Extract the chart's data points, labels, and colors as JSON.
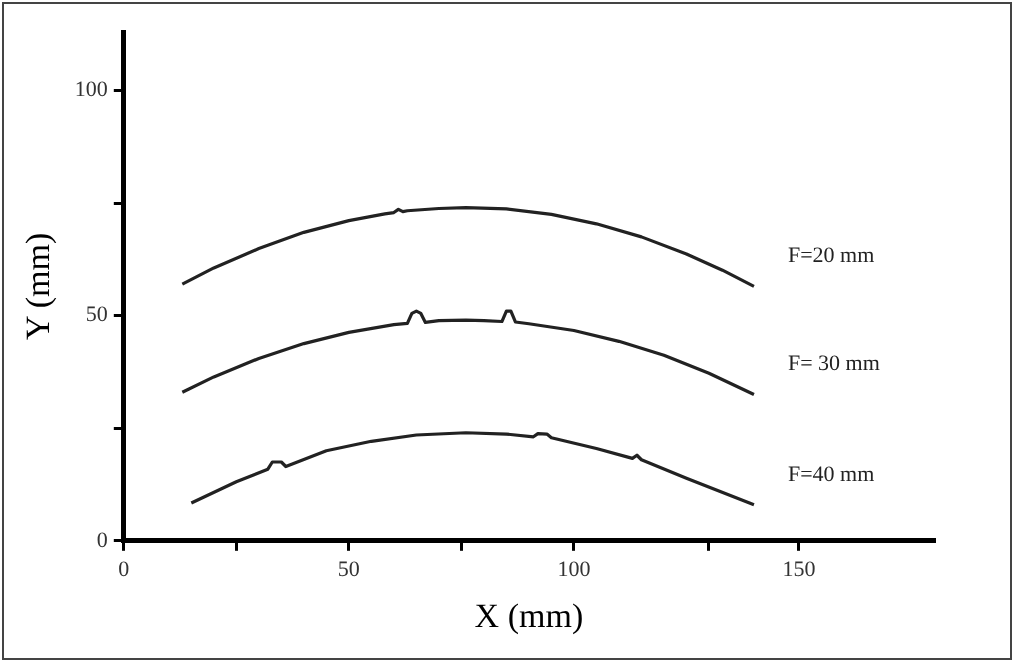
{
  "chart_data": {
    "type": "line",
    "xlabel": "X (mm)",
    "ylabel": "Y (mm)",
    "xlim": [
      0,
      180
    ],
    "ylim": [
      0,
      113
    ],
    "xticks": [
      0,
      {
        "value": 25,
        "label": null
      },
      50,
      {
        "value": 75,
        "label": null
      },
      100,
      {
        "value": 130,
        "label": null
      },
      150
    ],
    "yticks": [
      0,
      {
        "value": 25,
        "label": null
      },
      50,
      {
        "value": 75,
        "label": null
      },
      100
    ],
    "grid": false,
    "legend": false,
    "marker": "none",
    "line_style": "solid",
    "series": [
      {
        "name": "F=20 mm",
        "color": "#222222",
        "x": [
          13,
          20,
          30,
          40,
          50,
          58,
          60,
          61,
          62,
          63,
          70,
          76,
          85,
          95,
          105,
          115,
          125,
          133,
          140
        ],
        "values": [
          57,
          60.6,
          64.9,
          68.5,
          71.1,
          72.6,
          72.9,
          73.6,
          73.1,
          73.3,
          73.8,
          74,
          73.7,
          72.5,
          70.4,
          67.5,
          63.7,
          60.1,
          56.5
        ]
      },
      {
        "name": "F= 30 mm",
        "color": "#222222",
        "x": [
          13,
          20,
          30,
          40,
          50,
          60,
          63,
          64,
          65,
          66,
          67,
          70,
          76,
          80,
          84,
          85,
          86,
          87,
          90,
          100,
          110,
          120,
          130,
          140
        ],
        "values": [
          33,
          36.4,
          40.5,
          43.8,
          46.3,
          48,
          48.3,
          50.5,
          51,
          50.5,
          48.5,
          48.9,
          49,
          48.9,
          48.7,
          51,
          51,
          48.6,
          48.2,
          46.7,
          44.3,
          41.2,
          37.2,
          32.5
        ]
      },
      {
        "name": "F=40 mm",
        "color": "#222222",
        "x": [
          15,
          25,
          32,
          33,
          35,
          36,
          45,
          55,
          65,
          76,
          85,
          91,
          92,
          94,
          95,
          105,
          113,
          114,
          115,
          125,
          140
        ],
        "values": [
          8.4,
          13.1,
          15.9,
          17.5,
          17.5,
          16.5,
          20,
          22.1,
          23.5,
          24,
          23.7,
          23.1,
          23.8,
          23.7,
          22.9,
          20.5,
          18.3,
          19,
          18,
          13.9,
          8
        ]
      }
    ]
  }
}
